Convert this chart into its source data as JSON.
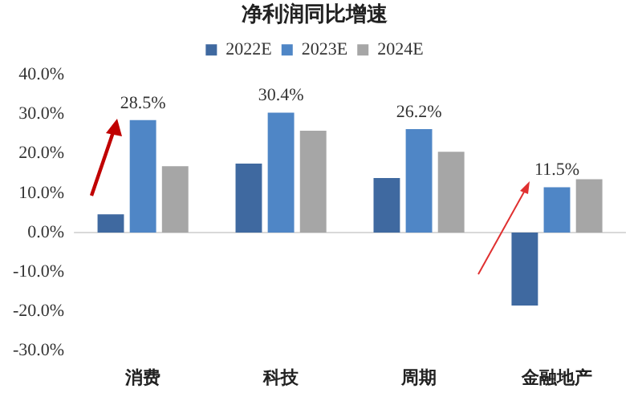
{
  "chart_data": {
    "type": "bar",
    "title": "净利润同比增速",
    "categories": [
      "消费",
      "科技",
      "周期",
      "金融地产"
    ],
    "series": [
      {
        "name": "2022E",
        "color": "#3f69a0",
        "values": [
          4.6,
          17.5,
          13.8,
          -18.5
        ]
      },
      {
        "name": "2023E",
        "color": "#4f86c6",
        "values": [
          28.5,
          30.4,
          26.2,
          11.5
        ],
        "value_labels": [
          "28.5%",
          "30.4%",
          "26.2%",
          "11.5%"
        ]
      },
      {
        "name": "2024E",
        "color": "#a6a6a6",
        "values": [
          16.8,
          25.8,
          20.5,
          13.5
        ]
      }
    ],
    "ylim": [
      -30,
      40
    ],
    "yticks": [
      {
        "value": -30,
        "label": "-30.0%"
      },
      {
        "value": -20,
        "label": "-20.0%"
      },
      {
        "value": -10,
        "label": "-10.0%"
      },
      {
        "value": 0,
        "label": "0.0%"
      },
      {
        "value": 10,
        "label": "10.0%"
      },
      {
        "value": 20,
        "label": "20.0%"
      },
      {
        "value": 30,
        "label": "30.0%"
      },
      {
        "value": 40,
        "label": "40.0%"
      }
    ],
    "legend": "top"
  }
}
